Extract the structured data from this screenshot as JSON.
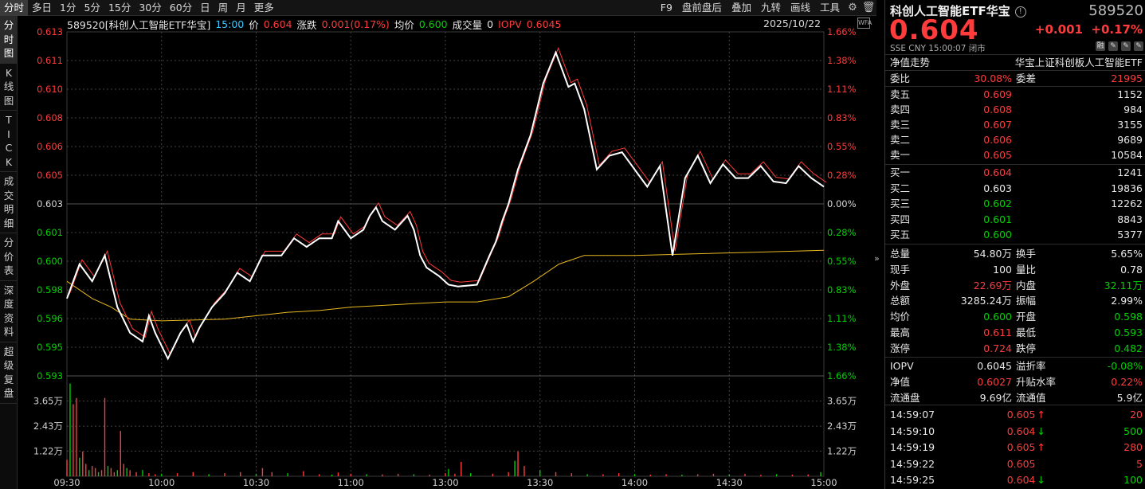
{
  "colors": {
    "up": "#ff3b3b",
    "down": "#00d000",
    "price_line": "#ffffff",
    "avg_line": "#e8b820",
    "mini_line": "#ff3b3b",
    "grid": "#2a2a2a",
    "dashed": "#444444"
  },
  "tabs": [
    "分时",
    "多日",
    "1分",
    "5分",
    "15分",
    "30分",
    "60分",
    "日",
    "周",
    "月",
    "更多"
  ],
  "tools": [
    "F9",
    "盘前盘后",
    "叠加",
    "九转",
    "画线",
    "工具"
  ],
  "tool_icons": [
    "gear-icon",
    "trash-icon"
  ],
  "left_nav": [
    "分时图",
    "K线图",
    "TICK",
    "成交明细",
    "分价表",
    "深度资料",
    "超级复盘"
  ],
  "info": {
    "symbol": "589520[科创人工智能ETF华宝]",
    "time": "15:00",
    "price_label": "价",
    "price": "0.604",
    "change_label": "涨跌",
    "change": "0.001(0.17%)",
    "avg_label": "均价",
    "avg": "0.600",
    "vol_label": "成交量",
    "vol": "0",
    "iopv_label": "IOPV",
    "iopv": "0.6045",
    "date": "2025/10/22",
    "wfa": "WFA"
  },
  "axis": {
    "left_ticks": [
      "0.613",
      "0.611",
      "0.610",
      "0.608",
      "0.606",
      "0.605",
      "0.603",
      "0.601",
      "0.600",
      "0.598",
      "0.596",
      "0.595",
      "0.593"
    ],
    "right_ticks": [
      "1.66%",
      "1.38%",
      "1.11%",
      "0.83%",
      "0.55%",
      "0.28%",
      "0.00%",
      "0.28%",
      "0.55%",
      "0.83%",
      "1.11%",
      "1.38%",
      "1.66%"
    ],
    "vol_left_ticks": [
      "3.65万",
      "2.43万",
      "1.22万"
    ],
    "vol_right_ticks": [
      "3.65万",
      "2.43万",
      "1.22万"
    ],
    "time_ticks": [
      "09:30",
      "10:00",
      "10:30",
      "11:00",
      "13:00",
      "13:30",
      "14:00",
      "14:30",
      "15:00"
    ]
  },
  "chart_data": {
    "type": "line",
    "x_unit": "trading minutes since 09:30 (0–240, 120 = 13:00)",
    "ylim": [
      0.593,
      0.613
    ],
    "prev_close": 0.603,
    "price_series": [
      [
        0,
        0.5975
      ],
      [
        4,
        0.5995
      ],
      [
        8,
        0.5985
      ],
      [
        12,
        0.6
      ],
      [
        16,
        0.597
      ],
      [
        20,
        0.5955
      ],
      [
        24,
        0.595
      ],
      [
        26,
        0.5965
      ],
      [
        28,
        0.5955
      ],
      [
        32,
        0.594
      ],
      [
        36,
        0.5955
      ],
      [
        38,
        0.596
      ],
      [
        40,
        0.595
      ],
      [
        42,
        0.5958
      ],
      [
        46,
        0.597
      ],
      [
        50,
        0.5978
      ],
      [
        54,
        0.599
      ],
      [
        58,
        0.5985
      ],
      [
        62,
        0.6
      ],
      [
        68,
        0.6
      ],
      [
        72,
        0.601
      ],
      [
        76,
        0.6005
      ],
      [
        80,
        0.601
      ],
      [
        84,
        0.601
      ],
      [
        86,
        0.602
      ],
      [
        90,
        0.601
      ],
      [
        94,
        0.6015
      ],
      [
        96,
        0.6023
      ],
      [
        98,
        0.6028
      ],
      [
        100,
        0.602
      ],
      [
        104,
        0.6015
      ],
      [
        108,
        0.6023
      ],
      [
        110,
        0.6015
      ],
      [
        112,
        0.6
      ],
      [
        114,
        0.5993
      ],
      [
        118,
        0.5988
      ],
      [
        121,
        0.5983
      ],
      [
        124,
        0.5982
      ],
      [
        130,
        0.5983
      ],
      [
        134,
        0.6
      ],
      [
        136,
        0.6008
      ],
      [
        138,
        0.602
      ],
      [
        140,
        0.603
      ],
      [
        143,
        0.605
      ],
      [
        147,
        0.607
      ],
      [
        151,
        0.61
      ],
      [
        155,
        0.6118
      ],
      [
        157,
        0.6108
      ],
      [
        159,
        0.6098
      ],
      [
        161,
        0.61
      ],
      [
        164,
        0.6085
      ],
      [
        168,
        0.605
      ],
      [
        172,
        0.6058
      ],
      [
        176,
        0.606
      ],
      [
        180,
        0.605
      ],
      [
        184,
        0.604
      ],
      [
        188,
        0.6052
      ],
      [
        192,
        0.6
      ],
      [
        196,
        0.6045
      ],
      [
        200,
        0.6058
      ],
      [
        204,
        0.6042
      ],
      [
        208,
        0.6053
      ],
      [
        212,
        0.6045
      ],
      [
        216,
        0.6045
      ],
      [
        220,
        0.6052
      ],
      [
        224,
        0.6043
      ],
      [
        228,
        0.6042
      ],
      [
        232,
        0.6052
      ],
      [
        236,
        0.6045
      ],
      [
        240,
        0.604
      ]
    ],
    "avg_series": [
      [
        0,
        0.5985
      ],
      [
        8,
        0.5975
      ],
      [
        14,
        0.597
      ],
      [
        20,
        0.5963
      ],
      [
        30,
        0.5962
      ],
      [
        50,
        0.5963
      ],
      [
        70,
        0.5967
      ],
      [
        80,
        0.5968
      ],
      [
        90,
        0.597
      ],
      [
        110,
        0.5972
      ],
      [
        120,
        0.5973
      ],
      [
        130,
        0.5973
      ],
      [
        140,
        0.5976
      ],
      [
        148,
        0.5985
      ],
      [
        156,
        0.5995
      ],
      [
        164,
        0.6
      ],
      [
        172,
        0.6
      ],
      [
        180,
        0.6
      ],
      [
        200,
        0.6001
      ],
      [
        220,
        0.6002
      ],
      [
        240,
        0.6003
      ]
    ],
    "volume_ylim": [
      0,
      48700
    ],
    "volume_bars": [
      [
        0,
        8000
      ],
      [
        1,
        45000
      ],
      [
        2,
        35000
      ],
      [
        3,
        38000
      ],
      [
        4,
        9000
      ],
      [
        5,
        12000
      ],
      [
        6,
        6000
      ],
      [
        7,
        3000
      ],
      [
        8,
        5000
      ],
      [
        9,
        4000
      ],
      [
        10,
        2000
      ],
      [
        11,
        3000
      ],
      [
        12,
        38000
      ],
      [
        13,
        5000
      ],
      [
        14,
        4000
      ],
      [
        15,
        2000
      ],
      [
        16,
        3000
      ],
      [
        17,
        22000
      ],
      [
        18,
        6000
      ],
      [
        19,
        4000
      ],
      [
        20,
        3000
      ],
      [
        22,
        2000
      ],
      [
        24,
        3000
      ],
      [
        26,
        1500
      ],
      [
        28,
        1000
      ],
      [
        30,
        1200
      ],
      [
        35,
        1500
      ],
      [
        40,
        2000
      ],
      [
        45,
        1000
      ],
      [
        50,
        1500
      ],
      [
        55,
        2000
      ],
      [
        60,
        1200
      ],
      [
        62,
        4000
      ],
      [
        65,
        2000
      ],
      [
        70,
        1500
      ],
      [
        75,
        2500
      ],
      [
        80,
        1000
      ],
      [
        84,
        800
      ],
      [
        86,
        1800
      ],
      [
        90,
        1200
      ],
      [
        95,
        1000
      ],
      [
        100,
        900
      ],
      [
        105,
        1200
      ],
      [
        110,
        1000
      ],
      [
        115,
        800
      ],
      [
        120,
        1500
      ],
      [
        121,
        3500
      ],
      [
        123,
        1200
      ],
      [
        125,
        7000
      ],
      [
        128,
        1500
      ],
      [
        135,
        1200
      ],
      [
        140,
        2000
      ],
      [
        142,
        7500
      ],
      [
        143,
        12000
      ],
      [
        145,
        5000
      ],
      [
        150,
        3000
      ],
      [
        155,
        2000
      ],
      [
        160,
        1500
      ],
      [
        165,
        1000
      ],
      [
        170,
        1000
      ],
      [
        175,
        1500
      ],
      [
        180,
        1000
      ],
      [
        185,
        800
      ],
      [
        190,
        1000
      ],
      [
        195,
        800
      ],
      [
        200,
        1000
      ],
      [
        205,
        1200
      ],
      [
        210,
        900
      ],
      [
        215,
        1100
      ],
      [
        220,
        700
      ],
      [
        225,
        1000
      ],
      [
        230,
        800
      ],
      [
        235,
        900
      ],
      [
        239,
        2000
      ]
    ]
  },
  "panel": {
    "title": "科创人工智能ETF华宝",
    "code": "589520",
    "price": "0.604",
    "change": "+0.001",
    "change_pct": "+0.17%",
    "meta": "SSE  CNY  15:00:07  闭市",
    "rz": [
      "融",
      "✎",
      "✎",
      "✎"
    ],
    "nav_label": "净值走势",
    "nav_name": "华宝上证科创板人工智能ETF",
    "weibi_label": "委比",
    "weibi": "30.08%",
    "weicha_label": "委差",
    "weicha": "21995",
    "asks": [
      {
        "label": "卖五",
        "price": "0.609",
        "vol": "1152"
      },
      {
        "label": "卖四",
        "price": "0.608",
        "vol": "984"
      },
      {
        "label": "卖三",
        "price": "0.607",
        "vol": "3155"
      },
      {
        "label": "卖二",
        "price": "0.606",
        "vol": "9689"
      },
      {
        "label": "卖一",
        "price": "0.605",
        "vol": "10584"
      }
    ],
    "bids": [
      {
        "label": "买一",
        "price": "0.604",
        "vol": "1241",
        "color": "red"
      },
      {
        "label": "买二",
        "price": "0.603",
        "vol": "19836",
        "color": "white"
      },
      {
        "label": "买三",
        "price": "0.602",
        "vol": "12262",
        "color": "green"
      },
      {
        "label": "买四",
        "price": "0.601",
        "vol": "8843",
        "color": "green"
      },
      {
        "label": "买五",
        "price": "0.600",
        "vol": "5377",
        "color": "green"
      }
    ],
    "stats": [
      [
        {
          "l": "总量",
          "v": "54.80万",
          "c": "white"
        },
        {
          "l": "换手",
          "v": "5.65%",
          "c": "white"
        }
      ],
      [
        {
          "l": "现手",
          "v": "100",
          "c": "white"
        },
        {
          "l": "量比",
          "v": "0.78",
          "c": "white"
        }
      ],
      [
        {
          "l": "外盘",
          "v": "22.69万",
          "c": "red"
        },
        {
          "l": "内盘",
          "v": "32.11万",
          "c": "green"
        }
      ],
      [
        {
          "l": "总额",
          "v": "3285.24万",
          "c": "white"
        },
        {
          "l": "振幅",
          "v": "2.99%",
          "c": "white"
        }
      ],
      [
        {
          "l": "均价",
          "v": "0.600",
          "c": "green"
        },
        {
          "l": "开盘",
          "v": "0.598",
          "c": "green"
        }
      ],
      [
        {
          "l": "最高",
          "v": "0.611",
          "c": "red"
        },
        {
          "l": "最低",
          "v": "0.593",
          "c": "green"
        }
      ],
      [
        {
          "l": "涨停",
          "v": "0.724",
          "c": "red"
        },
        {
          "l": "跌停",
          "v": "0.482",
          "c": "green"
        }
      ]
    ],
    "stats2": [
      [
        {
          "l": "IOPV",
          "v": "0.6045",
          "c": "white"
        },
        {
          "l": "溢折率",
          "v": "-0.08%",
          "c": "green"
        }
      ],
      [
        {
          "l": "净值",
          "v": "0.6027",
          "c": "red"
        },
        {
          "l": "升贴水率",
          "v": "0.22%",
          "c": "red"
        }
      ],
      [
        {
          "l": "流通盘",
          "v": "9.69亿",
          "c": "white"
        },
        {
          "l": "流通值",
          "v": "5.9亿",
          "c": "white"
        }
      ]
    ],
    "ticks": [
      {
        "time": "14:59:07",
        "price": "0.605",
        "dir": "up",
        "vol": "20",
        "vcolor": "red"
      },
      {
        "time": "14:59:10",
        "price": "0.604",
        "dir": "down",
        "vol": "500",
        "vcolor": "green"
      },
      {
        "time": "14:59:19",
        "price": "0.605",
        "dir": "up",
        "vol": "280",
        "vcolor": "red"
      },
      {
        "time": "14:59:22",
        "price": "0.605",
        "dir": "",
        "vol": "5",
        "vcolor": "red"
      },
      {
        "time": "14:59:25",
        "price": "0.604",
        "dir": "down",
        "vol": "100",
        "vcolor": "green"
      }
    ]
  }
}
